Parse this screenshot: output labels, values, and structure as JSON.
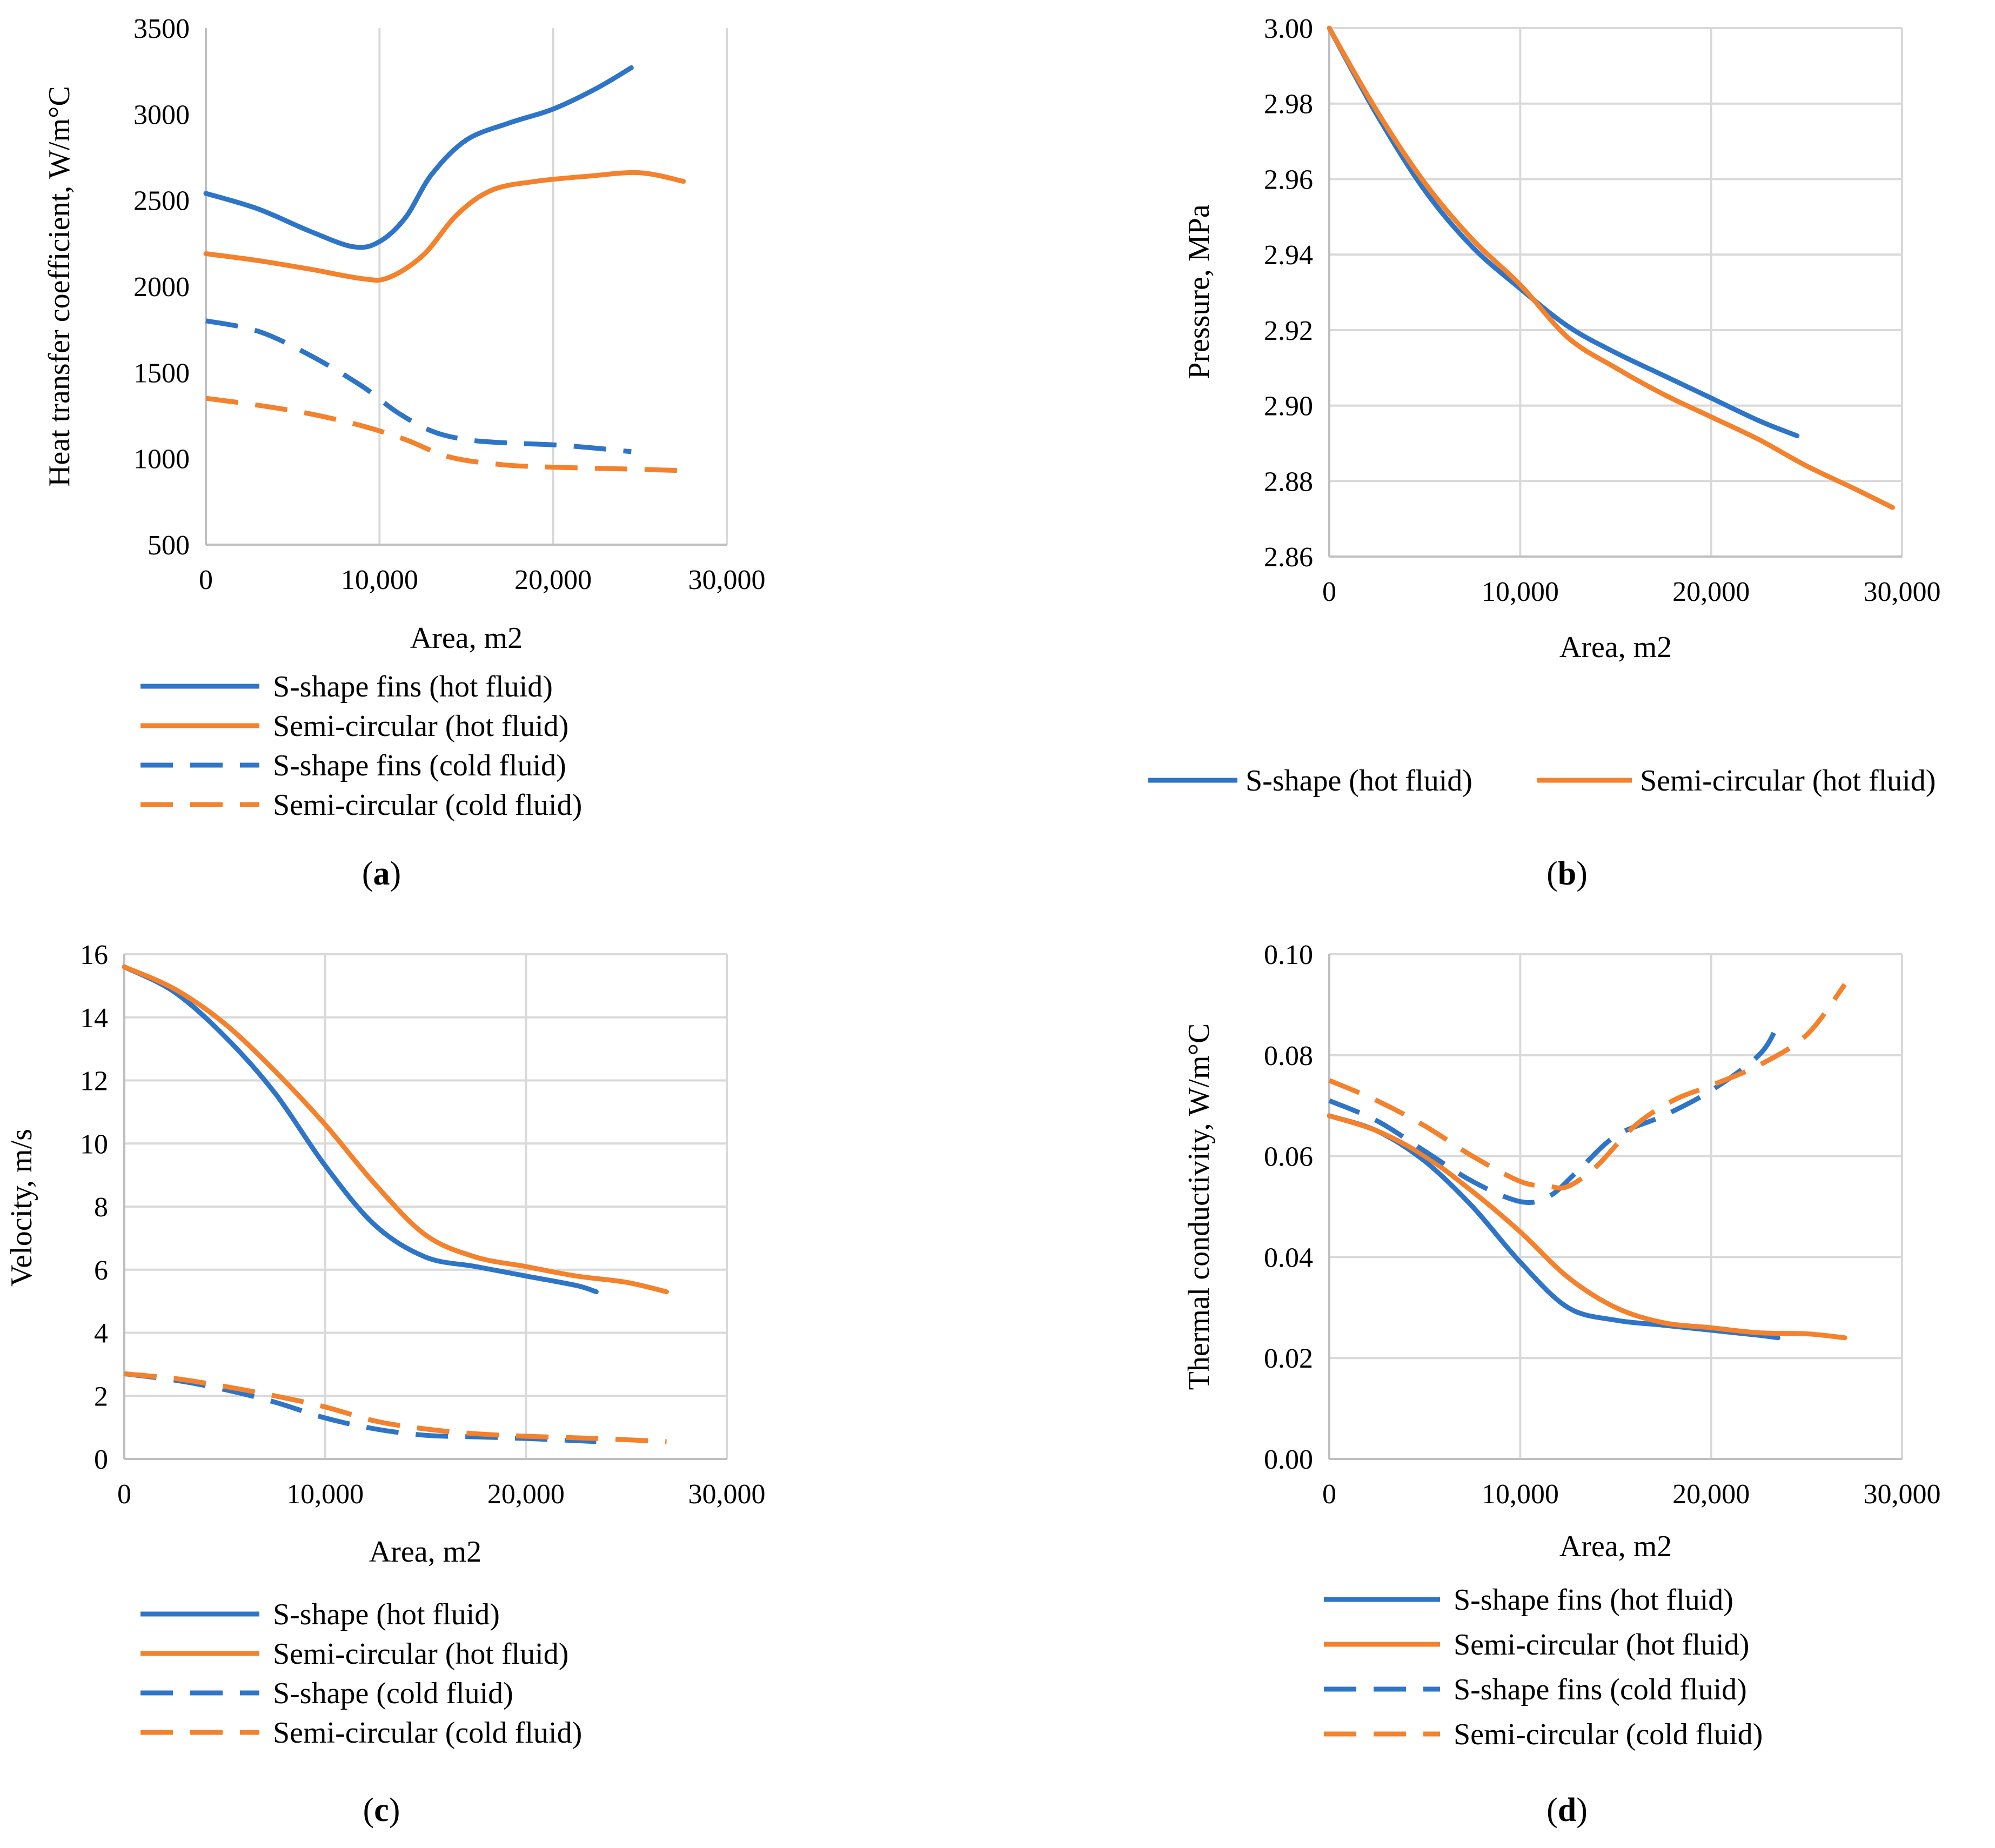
{
  "colors": {
    "blue": "#2E75C8",
    "orange": "#F4812C",
    "grid": "#d9d9d9",
    "axis": "#bfbfbf"
  },
  "chart_data": [
    {
      "type": "line",
      "caption_letter": "a",
      "xlabel": "Area, m2",
      "ylabel": "Heat transfer coefficient, W/m°C",
      "xlim": [
        0,
        30000
      ],
      "ylim": [
        500,
        3500
      ],
      "xticks": [
        0,
        10000,
        20000,
        30000
      ],
      "xtick_labels": [
        "0",
        "10,000",
        "20,000",
        "30,000"
      ],
      "yticks": [
        500,
        1000,
        1500,
        2000,
        2500,
        3000,
        3500
      ],
      "ytick_labels": [
        "500",
        "1000",
        "1500",
        "2000",
        "2500",
        "3000",
        "3500"
      ],
      "grid": "vertical",
      "legend_placement": "bottom",
      "series": [
        {
          "name": "S-shape fins (hot fluid)",
          "color": "blue",
          "dashed": false,
          "x": [
            0,
            3000,
            6000,
            8500,
            10000,
            11500,
            13000,
            15000,
            17500,
            20000,
            22500,
            24500
          ],
          "y": [
            2540,
            2450,
            2320,
            2230,
            2260,
            2400,
            2650,
            2850,
            2950,
            3030,
            3150,
            3270
          ]
        },
        {
          "name": "Semi-circular (hot fluid)",
          "color": "orange",
          "dashed": false,
          "x": [
            0,
            3000,
            6000,
            9000,
            10500,
            12500,
            14500,
            16500,
            19000,
            22000,
            25000,
            27500
          ],
          "y": [
            2190,
            2150,
            2100,
            2045,
            2050,
            2180,
            2420,
            2560,
            2610,
            2640,
            2660,
            2610
          ]
        },
        {
          "name": "S-shape fins (cold fluid)",
          "color": "blue",
          "dashed": true,
          "x": [
            0,
            3000,
            6000,
            9000,
            11000,
            13000,
            15000,
            17500,
            20000,
            22500,
            24500
          ],
          "y": [
            1800,
            1740,
            1600,
            1420,
            1270,
            1160,
            1110,
            1090,
            1080,
            1060,
            1040
          ]
        },
        {
          "name": "Semi-circular (cold fluid)",
          "color": "orange",
          "dashed": true,
          "x": [
            0,
            3000,
            6000,
            9000,
            11500,
            14000,
            17000,
            20000,
            24000,
            27500
          ],
          "y": [
            1350,
            1310,
            1260,
            1190,
            1110,
            1010,
            965,
            950,
            940,
            930
          ]
        }
      ]
    },
    {
      "type": "line",
      "caption_letter": "b",
      "xlabel": "Area, m2",
      "ylabel": "Pressure, MPa",
      "xlim": [
        0,
        30000
      ],
      "ylim": [
        2.86,
        3.0
      ],
      "xticks": [
        0,
        10000,
        20000,
        30000
      ],
      "xtick_labels": [
        "0",
        "10,000",
        "20,000",
        "30,000"
      ],
      "yticks": [
        2.86,
        2.88,
        2.9,
        2.92,
        2.94,
        2.96,
        2.98,
        3.0
      ],
      "ytick_labels": [
        "2.86",
        "2.88",
        "2.90",
        "2.92",
        "2.94",
        "2.96",
        "2.98",
        "3.00"
      ],
      "grid": "both",
      "legend_placement": "bottom-row",
      "series": [
        {
          "name": "S-shape (hot fluid)",
          "color": "blue",
          "dashed": false,
          "x": [
            0,
            2500,
            5000,
            7500,
            10000,
            12500,
            15000,
            17500,
            20000,
            22500,
            24500
          ],
          "y": [
            3.0,
            2.977,
            2.957,
            2.942,
            2.931,
            2.921,
            2.914,
            2.908,
            2.902,
            2.896,
            2.892
          ]
        },
        {
          "name": "Semi-circular (hot fluid)",
          "color": "orange",
          "dashed": false,
          "x": [
            0,
            2500,
            5000,
            7500,
            10000,
            12500,
            15000,
            17500,
            20000,
            22500,
            25000,
            27500,
            29500
          ],
          "y": [
            3.0,
            2.978,
            2.959,
            2.944,
            2.932,
            2.918,
            2.91,
            2.903,
            2.897,
            2.891,
            2.884,
            2.878,
            2.873
          ]
        }
      ]
    },
    {
      "type": "line",
      "caption_letter": "c",
      "xlabel": "Area, m2",
      "ylabel": "Velocity, m/s",
      "xlim": [
        0,
        30000
      ],
      "ylim": [
        0,
        16
      ],
      "xticks": [
        0,
        10000,
        20000,
        30000
      ],
      "xtick_labels": [
        "0",
        "10,000",
        "20,000",
        "30,000"
      ],
      "yticks": [
        0,
        2,
        4,
        6,
        8,
        10,
        12,
        14,
        16
      ],
      "ytick_labels": [
        "0",
        "2",
        "4",
        "6",
        "8",
        "10",
        "12",
        "14",
        "16"
      ],
      "grid": "both",
      "legend_placement": "bottom",
      "series": [
        {
          "name": "S-shape (hot fluid)",
          "color": "blue",
          "dashed": false,
          "x": [
            0,
            2500,
            5000,
            7500,
            10000,
            12500,
            15000,
            17500,
            20000,
            22500,
            23500
          ],
          "y": [
            15.6,
            14.8,
            13.4,
            11.6,
            9.3,
            7.4,
            6.4,
            6.1,
            5.8,
            5.5,
            5.3
          ]
        },
        {
          "name": "Semi-circular (hot fluid)",
          "color": "orange",
          "dashed": false,
          "x": [
            0,
            2500,
            5000,
            7500,
            10000,
            12500,
            15000,
            17500,
            20000,
            22500,
            25000,
            27000
          ],
          "y": [
            15.6,
            14.9,
            13.8,
            12.3,
            10.6,
            8.7,
            7.1,
            6.4,
            6.1,
            5.8,
            5.6,
            5.3
          ]
        },
        {
          "name": "S-shape (cold fluid)",
          "color": "blue",
          "dashed": true,
          "x": [
            0,
            2500,
            5000,
            7500,
            10000,
            12500,
            15000,
            17500,
            20000,
            23500
          ],
          "y": [
            2.7,
            2.5,
            2.2,
            1.8,
            1.3,
            0.95,
            0.75,
            0.7,
            0.65,
            0.55
          ]
        },
        {
          "name": "Semi-circular (cold fluid)",
          "color": "orange",
          "dashed": true,
          "x": [
            0,
            2500,
            5000,
            7500,
            10000,
            12500,
            15000,
            17500,
            20000,
            23500,
            27000
          ],
          "y": [
            2.7,
            2.55,
            2.3,
            2.0,
            1.65,
            1.2,
            0.95,
            0.8,
            0.72,
            0.65,
            0.55
          ]
        }
      ]
    },
    {
      "type": "line",
      "caption_letter": "d",
      "xlabel": "Area, m2",
      "ylabel": "Thermal conductivity, W/m°C",
      "xlim": [
        0,
        30000
      ],
      "ylim": [
        0.0,
        0.1
      ],
      "xticks": [
        0,
        10000,
        20000,
        30000
      ],
      "xtick_labels": [
        "0",
        "10,000",
        "20,000",
        "30,000"
      ],
      "yticks": [
        0.0,
        0.02,
        0.04,
        0.06,
        0.08,
        0.1
      ],
      "ytick_labels": [
        "0.00",
        "0.02",
        "0.04",
        "0.06",
        "0.08",
        "0.10"
      ],
      "grid": "both",
      "legend_placement": "bottom",
      "series": [
        {
          "name": "S-shape fins (hot fluid)",
          "color": "blue",
          "dashed": false,
          "x": [
            0,
            2500,
            5000,
            7500,
            10000,
            12500,
            15000,
            17500,
            20000,
            22500,
            23500
          ],
          "y": [
            0.068,
            0.065,
            0.059,
            0.05,
            0.039,
            0.03,
            0.0275,
            0.0265,
            0.0255,
            0.0245,
            0.024
          ]
        },
        {
          "name": "Semi-circular (hot fluid)",
          "color": "orange",
          "dashed": false,
          "x": [
            0,
            2500,
            5000,
            7500,
            10000,
            12500,
            15000,
            17500,
            20000,
            22500,
            25000,
            27000
          ],
          "y": [
            0.068,
            0.065,
            0.06,
            0.053,
            0.045,
            0.036,
            0.03,
            0.027,
            0.026,
            0.025,
            0.0248,
            0.024
          ]
        },
        {
          "name": "S-shape fins (cold fluid)",
          "color": "blue",
          "dashed": true,
          "x": [
            0,
            2500,
            5000,
            7500,
            10000,
            11500,
            13000,
            15000,
            17500,
            20000,
            22500,
            23500
          ],
          "y": [
            0.071,
            0.067,
            0.061,
            0.055,
            0.051,
            0.052,
            0.057,
            0.064,
            0.068,
            0.073,
            0.08,
            0.086
          ]
        },
        {
          "name": "Semi-circular (cold fluid)",
          "color": "orange",
          "dashed": true,
          "x": [
            0,
            2500,
            5000,
            7500,
            10000,
            11500,
            12500,
            14000,
            16000,
            18000,
            20000,
            22500,
            25000,
            27000
          ],
          "y": [
            0.075,
            0.071,
            0.066,
            0.06,
            0.055,
            0.054,
            0.054,
            0.058,
            0.066,
            0.071,
            0.074,
            0.078,
            0.084,
            0.094
          ]
        }
      ]
    }
  ]
}
